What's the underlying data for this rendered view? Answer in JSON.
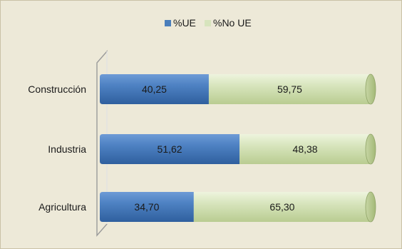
{
  "chart_data": {
    "type": "bar",
    "orientation": "horizontal",
    "stacked": true,
    "percent_stacked": true,
    "categories": [
      "Construcción",
      "Industria",
      "Agricultura"
    ],
    "series": [
      {
        "name": "%UE",
        "values": [
          40.25,
          51.62,
          34.7
        ],
        "labels": [
          "40,25",
          "51,62",
          "34,70"
        ],
        "color": "#4a7ebb"
      },
      {
        "name": "%No UE",
        "values": [
          59.75,
          48.38,
          65.3
        ],
        "labels": [
          "59,75",
          "48,38",
          "65,30"
        ],
        "color": "#d7e4bd"
      }
    ],
    "xlim": [
      0,
      100
    ],
    "legend_position": "top",
    "grid": false,
    "style": "3d-cylinder"
  },
  "colors": {
    "background": "#ede9d8",
    "frame_border": "#c9c2a6",
    "wall_line": "#9a9a9a"
  }
}
